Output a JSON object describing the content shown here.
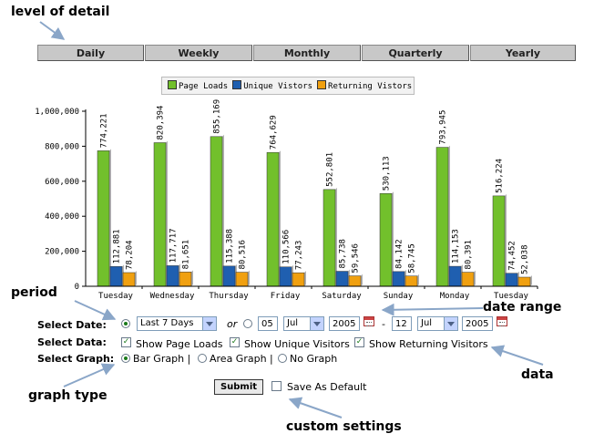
{
  "annotations": {
    "level_of_detail": "level of detail",
    "period": "period",
    "date_range": "date range",
    "data": "data",
    "graph_type": "graph type",
    "custom_settings": "custom settings"
  },
  "tabs": [
    "Daily",
    "Weekly",
    "Monthly",
    "Quarterly",
    "Yearly"
  ],
  "colors": {
    "page_loads": "#72c02c",
    "unique_visitors": "#1f5fb0",
    "returning_visitors": "#f0a010"
  },
  "chart_data": {
    "type": "bar",
    "categories": [
      "Tuesday",
      "Wednesday",
      "Thursday",
      "Friday",
      "Saturday",
      "Sunday",
      "Monday",
      "Tuesday"
    ],
    "series": [
      {
        "name": "Page Loads",
        "values": [
          774221,
          820394,
          855169,
          764629,
          552801,
          530113,
          793945,
          516224
        ]
      },
      {
        "name": "Unique Vistors",
        "values": [
          112881,
          117717,
          115388,
          110566,
          85738,
          84142,
          114153,
          74452
        ]
      },
      {
        "name": "Returning Vistors",
        "values": [
          78204,
          81651,
          80516,
          77243,
          59546,
          58745,
          80391,
          52038
        ]
      }
    ],
    "value_labels": [
      [
        "774,221",
        "820,394",
        "855,169",
        "764,629",
        "552,801",
        "530,113",
        "793,945",
        "516,224"
      ],
      [
        "112,881",
        "117,717",
        "115,388",
        "110,566",
        "85,738",
        "84,142",
        "114,153",
        "74,452"
      ],
      [
        "78,204",
        "81,651",
        "80,516",
        "77,243",
        "59,546",
        "58,745",
        "80,391",
        "52,038"
      ]
    ],
    "y_ticks": [
      0,
      200000,
      400000,
      600000,
      800000,
      1000000
    ],
    "y_tick_labels": [
      "0",
      "200,000",
      "400,000",
      "600,000",
      "800,000",
      "1,000,000"
    ],
    "ylim": [
      0,
      1000000
    ],
    "legend_position": "top-center",
    "title": "",
    "xlabel": "",
    "ylabel": ""
  },
  "form": {
    "select_date_label": "Select Date:",
    "select_data_label": "Select Data:",
    "select_graph_label": "Select Graph:",
    "period_value": "Last 7 Days",
    "or_label": "or",
    "from_day": "05",
    "from_month": "Jul",
    "from_year": "2005",
    "dash": "-",
    "to_day": "12",
    "to_month": "Jul",
    "to_year": "2005",
    "show_page_loads": "Show Page Loads",
    "show_unique_visitors": "Show Unique Visitors",
    "show_returning_visitors": "Show Returning Visitors",
    "bar_graph": "Bar Graph |",
    "area_graph": "Area Graph |",
    "no_graph": "No Graph",
    "submit": "Submit",
    "save_default": "Save As Default",
    "check_mark": "✓"
  }
}
